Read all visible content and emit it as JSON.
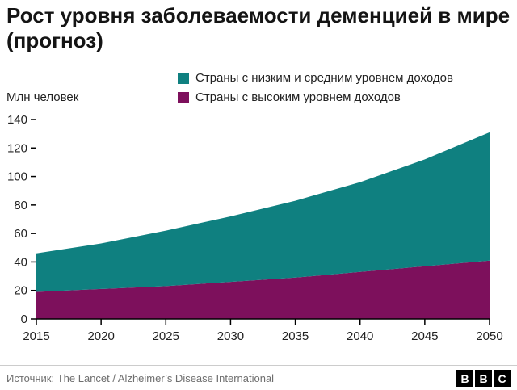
{
  "header": {
    "title": "Рост уровня заболеваемости деменцией в мире (прогноз)"
  },
  "y_axis": {
    "label": "Млн человек"
  },
  "legend": {
    "items": [
      {
        "label": "Страны с низким и средним уровнем доходов",
        "color": "#0f8080"
      },
      {
        "label": "Страны с высоким уровнем доходов",
        "color": "#7d105c"
      }
    ]
  },
  "chart_data": {
    "type": "area",
    "stacked": true,
    "title": "Рост уровня заболеваемости деменцией в мире (прогноз)",
    "ylabel": "Млн человек",
    "x": [
      2015,
      2020,
      2025,
      2030,
      2035,
      2040,
      2045,
      2050
    ],
    "series": [
      {
        "name": "Страны с высоким уровнем доходов",
        "color": "#7d105c",
        "values": [
          19,
          21,
          23,
          26,
          29,
          33,
          37,
          41
        ]
      },
      {
        "name": "Страны с низким и средним уровнем доходов",
        "color": "#0f8080",
        "values": [
          27,
          32,
          39,
          46,
          54,
          63,
          75,
          90
        ]
      }
    ],
    "totals": [
      46,
      53,
      62,
      72,
      83,
      96,
      112,
      131
    ],
    "ylim": [
      0,
      140
    ],
    "yticks": [
      0,
      20,
      40,
      60,
      80,
      100,
      120,
      140
    ],
    "xticks": [
      2015,
      2020,
      2025,
      2030,
      2035,
      2040,
      2045,
      2050
    ],
    "grid": false,
    "legend_position": "top-right"
  },
  "footer": {
    "source": "Источник: The Lancet / Alzheimer’s Disease International",
    "logo": {
      "letters": [
        "B",
        "B",
        "C"
      ]
    }
  }
}
